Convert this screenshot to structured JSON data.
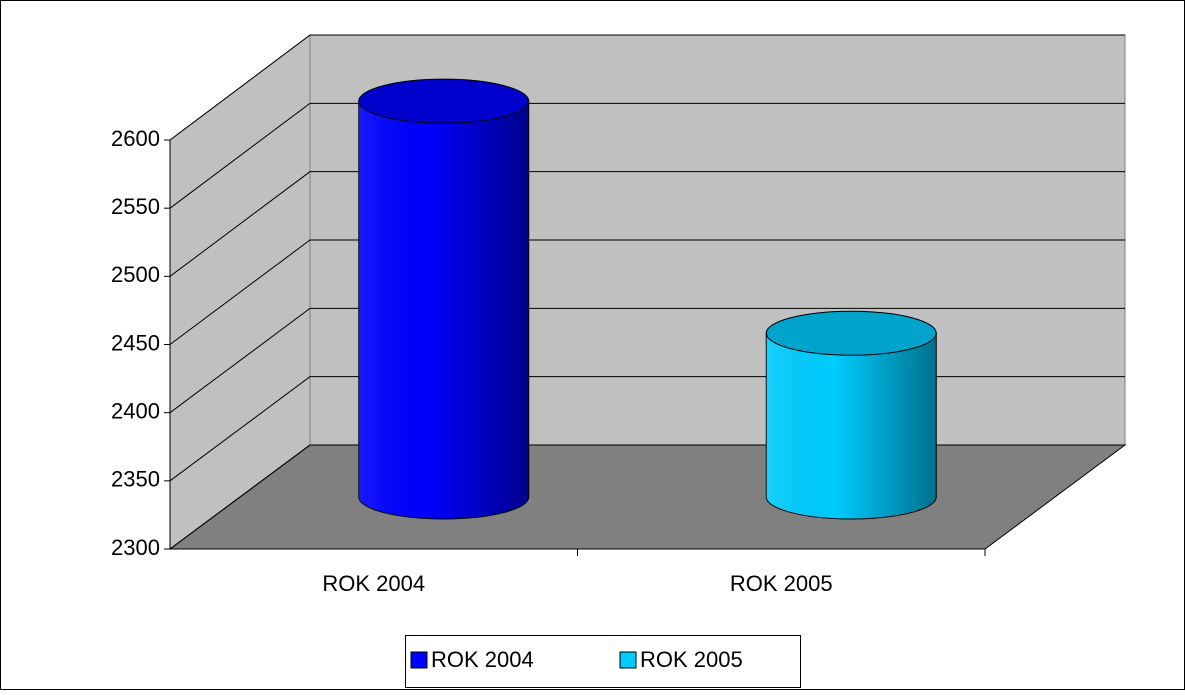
{
  "chart_data": {
    "type": "bar3d",
    "categories": [
      "ROK 2004",
      "ROK 2005"
    ],
    "series": [
      {
        "name": "ROK 2004",
        "color": "#0000ff",
        "values": [
          2590,
          null
        ]
      },
      {
        "name": "ROK 2005",
        "color": "#00ccff",
        "values": [
          null,
          2420
        ]
      }
    ],
    "ylim": [
      2300,
      2600
    ],
    "yticks": [
      2300,
      2350,
      2400,
      2450,
      2500,
      2550,
      2600
    ],
    "grid": true,
    "legend": "bottom"
  }
}
